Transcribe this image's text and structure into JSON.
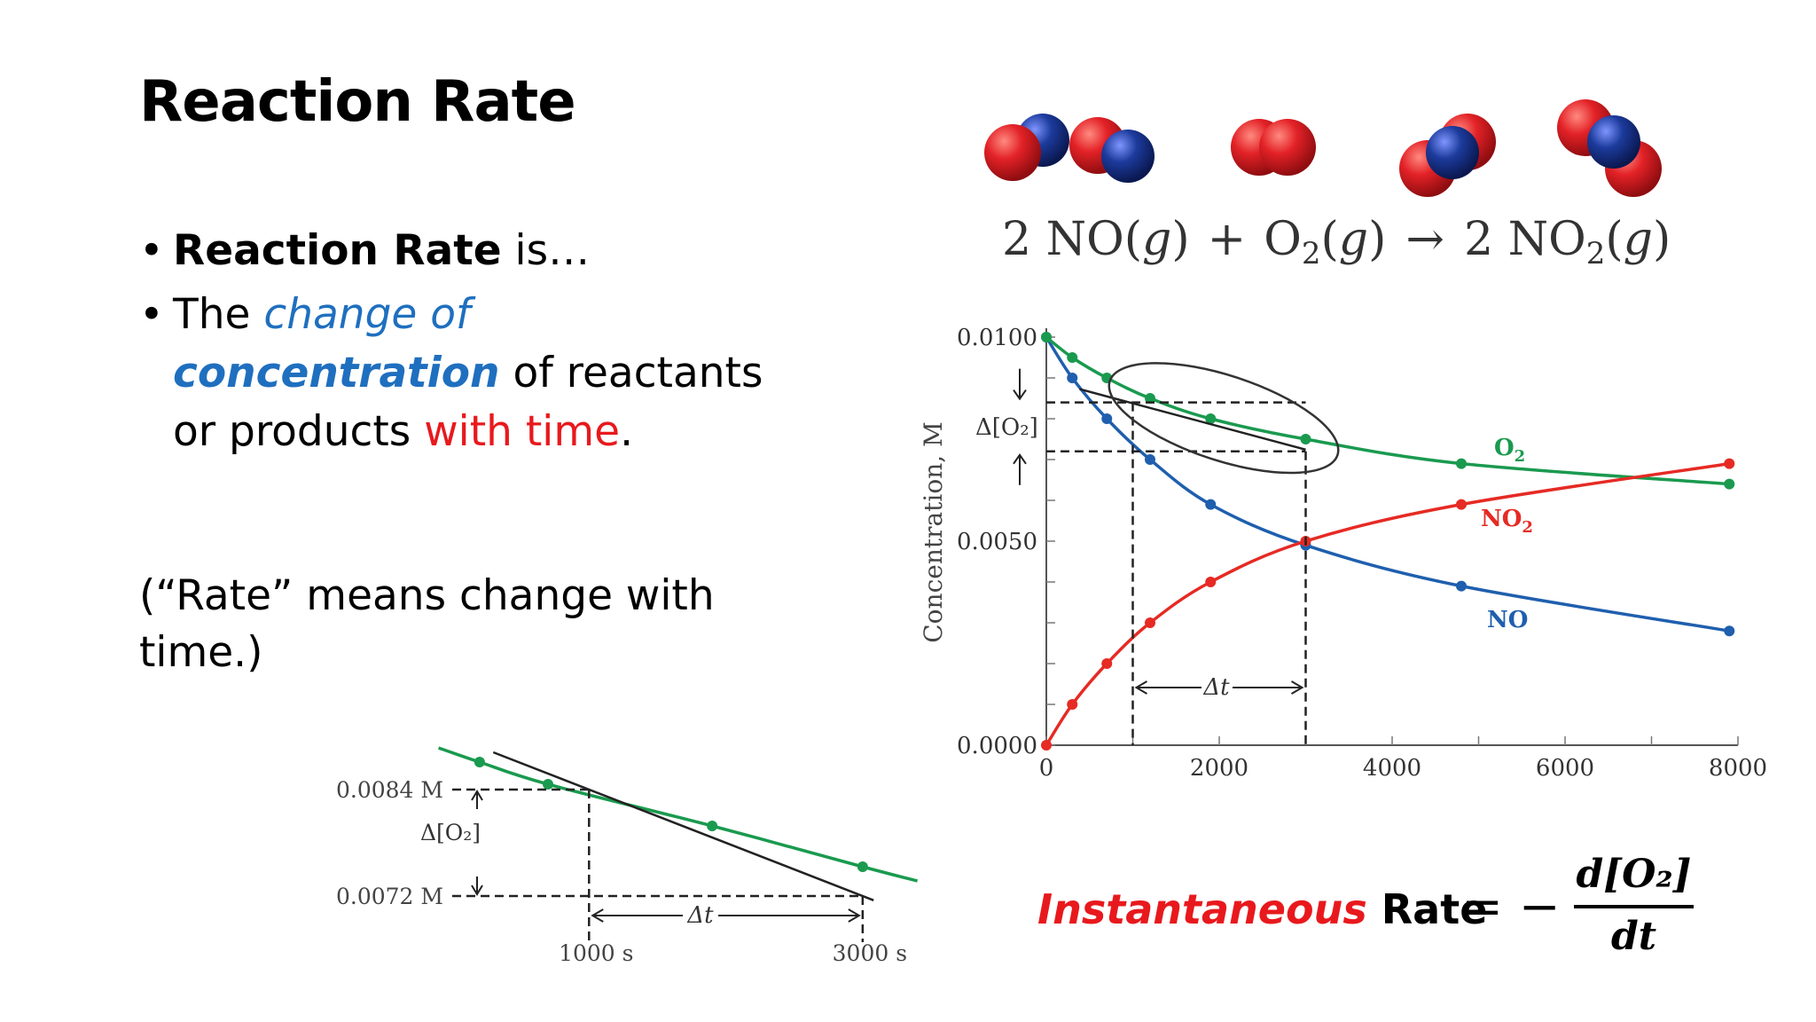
{
  "slide": {
    "title": "Reaction Rate",
    "bullet1": {
      "bold": "Reaction Rate",
      "rest": " is…"
    },
    "bullet2": {
      "pre": "The ",
      "change_of": "change of",
      "concentration": "concentration",
      "mid": " of reactants or products ",
      "with_time": "with time",
      "end": "."
    },
    "note": "(“Rate” means change with time.)"
  },
  "equation": {
    "coef1": "2 NO(",
    "g": "g",
    "close": ")",
    "plus": "+",
    "o2": "O",
    "sub2": "2",
    "arrow": "→",
    "coef2": "2 NO"
  },
  "formula": {
    "instantaneous": "Instantaneous",
    "rate": " Rate",
    "equals": "= −",
    "numerator": "d[O₂]",
    "denominator": "dt"
  },
  "colors": {
    "NO": "#1f5fae",
    "O2": "#1a9a4f",
    "NO2": "#e62a24",
    "oxygen_atom": "#e32227",
    "nitrogen_atom": "#1c3b9c"
  },
  "chart_data": [
    {
      "type": "line",
      "xlabel": "",
      "ylabel": "Concentration, M",
      "xlim": [
        0,
        8000
      ],
      "ylim": [
        0,
        0.01
      ],
      "xticks": [
        "0",
        "2000",
        "4000",
        "6000",
        "8000"
      ],
      "yticks": [
        "0.0000",
        "0.0050",
        "0.0100"
      ],
      "series": [
        {
          "name": "NO",
          "color": "#1f5fae",
          "x": [
            0,
            300,
            700,
            1200,
            1900,
            3000,
            4800,
            7900
          ],
          "y": [
            0.01,
            0.009,
            0.008,
            0.007,
            0.0059,
            0.0049,
            0.0039,
            0.0028
          ]
        },
        {
          "name": "O2",
          "color": "#1a9a4f",
          "x": [
            0,
            300,
            700,
            1200,
            1900,
            3000,
            4800,
            7900
          ],
          "y": [
            0.01,
            0.0095,
            0.009,
            0.0085,
            0.008,
            0.0075,
            0.0069,
            0.0064
          ]
        },
        {
          "name": "NO2",
          "color": "#e62a24",
          "x": [
            0,
            300,
            700,
            1200,
            1900,
            3000,
            4800,
            7900
          ],
          "y": [
            0.0,
            0.001,
            0.002,
            0.003,
            0.004,
            0.005,
            0.0059,
            0.0069
          ]
        }
      ],
      "annotations": {
        "delta_o2": "Δ[O₂]",
        "delta_t": "Δt",
        "o2_label": "O",
        "o2_sub": "2",
        "no2_label": "NO",
        "no2_sub": "2",
        "no_label": "NO"
      }
    },
    {
      "type": "line",
      "title": "",
      "xlim": [
        0,
        3500
      ],
      "ylim": [
        0.0068,
        0.0092
      ],
      "xticks": [
        "1000 s",
        "3000 s"
      ],
      "yticks": [
        "0.0084 M",
        "0.0072 M"
      ],
      "series": [
        {
          "name": "",
          "color": "#1a9a4f",
          "x": [
            200,
            700,
            1900,
            3000
          ],
          "y": [
            0.00871,
            0.00846,
            0.00799,
            0.00753
          ]
        }
      ],
      "tangent": {
        "x": [
          1000,
          3000
        ],
        "y": [
          0.0084,
          0.0072
        ]
      },
      "annotations": {
        "delta_o2": "Δ[O₂]",
        "delta_t": "Δt"
      }
    }
  ]
}
